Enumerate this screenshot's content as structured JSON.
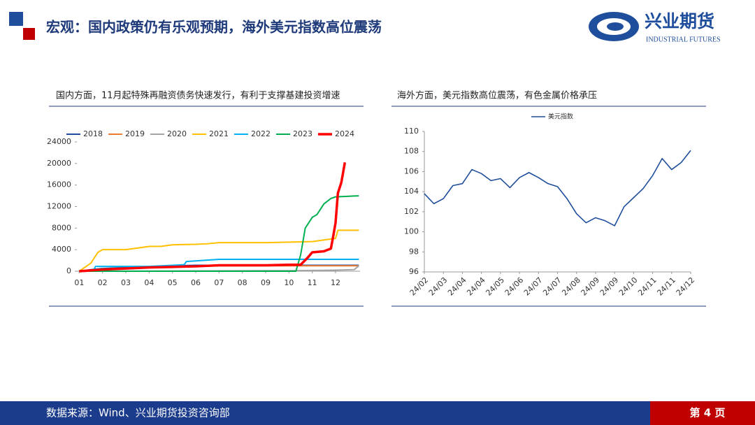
{
  "header": {
    "title": "宏观：国内政策仍有乐观预期，海外美元指数高位震荡",
    "logo_name": "兴业期货",
    "logo_english": "INDUSTRIAL FUTURES"
  },
  "chart_data": [
    {
      "type": "line",
      "title": "国内方面，11月起特殊再融资债务快速发行，有利于支撑基建投资增速",
      "legend": "top",
      "xlim": [
        0.9,
        13.05
      ],
      "ylim": [
        0,
        24000
      ],
      "yticks": [
        0,
        4000,
        8000,
        12000,
        16000,
        20000,
        24000
      ],
      "xticks": [
        {
          "value": 1,
          "label": "01"
        },
        {
          "value": 2,
          "label": "02"
        },
        {
          "value": 3,
          "label": "03"
        },
        {
          "value": 4,
          "label": "04"
        },
        {
          "value": 5,
          "label": "05"
        },
        {
          "value": 6,
          "label": "06"
        },
        {
          "value": 7,
          "label": "07"
        },
        {
          "value": 8,
          "label": "08"
        },
        {
          "value": 9,
          "label": "09"
        },
        {
          "value": 10,
          "label": "10"
        },
        {
          "value": 11,
          "label": "11"
        },
        {
          "value": 12,
          "label": "12"
        }
      ],
      "series": [
        {
          "name": "2018",
          "color": "#1f4e9c",
          "line_width": 2,
          "x": [
            1,
            1.5,
            2,
            3,
            4,
            5,
            6,
            7,
            13
          ],
          "values": [
            0,
            300,
            500,
            700,
            800,
            1000,
            1100,
            1100,
            1100
          ]
        },
        {
          "name": "2019",
          "color": "#ed7d31",
          "line_width": 2,
          "x": [
            1,
            1.6,
            2,
            3,
            5,
            7,
            13
          ],
          "values": [
            0,
            200,
            400,
            600,
            900,
            1000,
            1000
          ]
        },
        {
          "name": "2020",
          "color": "#a5a5a5",
          "line_width": 2,
          "x": [
            1,
            10,
            12,
            12.8,
            13
          ],
          "values": [
            0,
            100,
            200,
            300,
            1000
          ]
        },
        {
          "name": "2021",
          "color": "#ffc000",
          "line_width": 2,
          "x": [
            1,
            1.5,
            1.8,
            2,
            3,
            3.5,
            4,
            4.5,
            5,
            6,
            6.5,
            7,
            8,
            9,
            10,
            11,
            12,
            12.1,
            13
          ],
          "values": [
            0,
            1500,
            3500,
            4000,
            4000,
            4300,
            4600,
            4600,
            4900,
            5000,
            5100,
            5300,
            5300,
            5300,
            5400,
            5500,
            6100,
            7600,
            7600
          ]
        },
        {
          "name": "2022",
          "color": "#00b0f0",
          "line_width": 2,
          "x": [
            1,
            1.6,
            1.7,
            4,
            5.5,
            5.6,
            7,
            13
          ],
          "values": [
            0,
            0,
            900,
            900,
            1200,
            1800,
            2200,
            2200
          ]
        },
        {
          "name": "2023",
          "color": "#00b050",
          "line_width": 2,
          "x": [
            1,
            10.3,
            10.5,
            10.7,
            11,
            11.2,
            11.5,
            11.8,
            12,
            12.5,
            13
          ],
          "values": [
            0,
            0,
            3000,
            8000,
            10000,
            10500,
            12500,
            13500,
            13800,
            13900,
            14000
          ]
        },
        {
          "name": "2024",
          "color": "#ff0000",
          "line_width": 3.5,
          "x": [
            1,
            2,
            3,
            4,
            5,
            6,
            7,
            8,
            9,
            10,
            10.5,
            10.8,
            11,
            11.5,
            11.8,
            11.9,
            12,
            12.1,
            12.25,
            12.4
          ],
          "values": [
            0,
            300,
            500,
            700,
            800,
            900,
            1100,
            1100,
            1100,
            1200,
            1200,
            2500,
            3500,
            3700,
            4200,
            6500,
            9000,
            14500,
            16500,
            20200
          ]
        }
      ]
    },
    {
      "type": "line",
      "title": "海外方面，美元指数高位震荡，有色金属价格承压",
      "legend": "top",
      "xlim": [
        0,
        14
      ],
      "ylim": [
        96,
        110
      ],
      "yticks": [
        96,
        98,
        100,
        102,
        104,
        106,
        108,
        110
      ],
      "xticks": [
        {
          "value": 0,
          "label": "24/02"
        },
        {
          "value": 1,
          "label": "24/03"
        },
        {
          "value": 2,
          "label": "24/04"
        },
        {
          "value": 3,
          "label": "24/04"
        },
        {
          "value": 4,
          "label": "24/05"
        },
        {
          "value": 5,
          "label": "24/06"
        },
        {
          "value": 6,
          "label": "24/07"
        },
        {
          "value": 7,
          "label": "24/07"
        },
        {
          "value": 8,
          "label": "24/08"
        },
        {
          "value": 9,
          "label": "24/09"
        },
        {
          "value": 10,
          "label": "24/09"
        },
        {
          "value": 11,
          "label": "24/10"
        },
        {
          "value": 12,
          "label": "24/11"
        },
        {
          "value": 13,
          "label": "24/11"
        },
        {
          "value": 14,
          "label": "24/12"
        }
      ],
      "series": [
        {
          "name": "美元指数",
          "color": "#1f4e9c",
          "line_width": 1.6,
          "x": [
            0,
            0.5,
            1,
            1.5,
            2,
            2.5,
            3,
            3.5,
            4,
            4.5,
            5,
            5.5,
            6,
            6.5,
            7,
            7.5,
            8,
            8.5,
            9,
            9.5,
            10,
            10.5,
            11,
            11.5,
            12,
            12.5,
            13,
            13.5,
            14
          ],
          "values": [
            103.8,
            102.8,
            103.3,
            104.6,
            104.8,
            106.2,
            105.8,
            105.1,
            105.3,
            104.4,
            105.4,
            105.9,
            105.4,
            104.8,
            104.5,
            103.3,
            101.8,
            100.9,
            101.4,
            101.1,
            100.6,
            102.5,
            103.4,
            104.3,
            105.6,
            107.3,
            106.2,
            106.9,
            108.1
          ]
        }
      ]
    }
  ],
  "footer": {
    "source": "数据来源：Wind、兴业期货投资咨询部",
    "page": "第 4 页"
  }
}
